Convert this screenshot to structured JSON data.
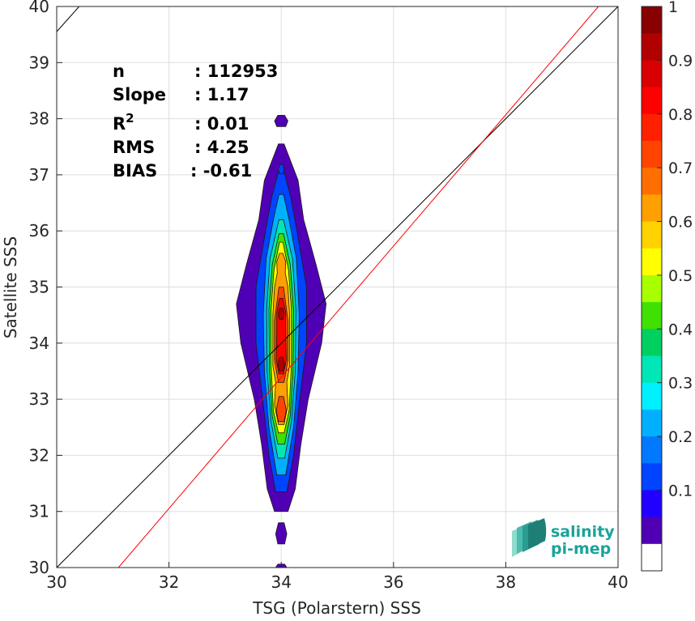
{
  "chart_data": {
    "type": "heatmap",
    "subtype": "filled-contour density scatter",
    "xlabel": "TSG (Polarstern) SSS",
    "ylabel": "Satellite SSS",
    "xlim": [
      30,
      40
    ],
    "ylim": [
      30,
      40
    ],
    "xticks": [
      "30",
      "32",
      "34",
      "36",
      "38",
      "40"
    ],
    "yticks": [
      "30",
      "31",
      "32",
      "33",
      "34",
      "35",
      "36",
      "37",
      "38",
      "39",
      "40"
    ],
    "grid": true,
    "stats": [
      {
        "label": "n",
        "value": ": 112953"
      },
      {
        "label": "Slope",
        "value": ": 1.17"
      },
      {
        "label": "R",
        "sup": "2",
        "value": ": 0.01"
      },
      {
        "label": "RMS",
        "value": ": 4.25"
      },
      {
        "label": "BIAS",
        "value": ": -0.61"
      }
    ],
    "lines": [
      {
        "kind": "identity",
        "color": "#000000",
        "points": [
          [
            30,
            30
          ],
          [
            40,
            40
          ]
        ]
      },
      {
        "kind": "regression",
        "color": "#ff0000",
        "slope": 1.17,
        "points": [
          [
            31.1,
            30
          ],
          [
            39.65,
            40
          ]
        ]
      },
      {
        "kind": "regression-offset",
        "color": "#000000",
        "points": [
          [
            30,
            39.55
          ],
          [
            30.4,
            40
          ]
        ]
      }
    ],
    "density": {
      "center_x": 34.0,
      "levels": [
        {
          "level": 0.05,
          "blobs": [
            {
              "y0": 31.0,
              "y1": 37.55,
              "hw": [
                [
                  31.0,
                  0.12
                ],
                [
                  31.4,
                  0.25
                ],
                [
                  32.2,
                  0.35
                ],
                [
                  33.0,
                  0.48
                ],
                [
                  34.0,
                  0.72
                ],
                [
                  34.7,
                  0.8
                ],
                [
                  35.4,
                  0.62
                ],
                [
                  36.2,
                  0.4
                ],
                [
                  36.9,
                  0.3
                ],
                [
                  37.55,
                  0.05
                ]
              ]
            },
            {
              "y0": 30.42,
              "y1": 30.8,
              "hw": [
                [
                  30.42,
                  0.06
                ],
                [
                  30.6,
                  0.1
                ],
                [
                  30.8,
                  0.05
                ]
              ]
            },
            {
              "y0": 37.86,
              "y1": 38.06,
              "hw": [
                [
                  37.86,
                  0.08
                ],
                [
                  37.96,
                  0.12
                ],
                [
                  38.06,
                  0.06
                ]
              ]
            },
            {
              "y0": 30.0,
              "y1": 30.06,
              "hw": [
                [
                  30.0,
                  0.1
                ],
                [
                  30.06,
                  0.06
                ]
              ]
            }
          ]
        },
        {
          "level": 0.15,
          "blobs": [
            {
              "y0": 31.35,
              "y1": 37.05,
              "hw": [
                [
                  31.35,
                  0.1
                ],
                [
                  32.0,
                  0.22
                ],
                [
                  33.0,
                  0.33
                ],
                [
                  34.0,
                  0.45
                ],
                [
                  35.0,
                  0.45
                ],
                [
                  36.0,
                  0.28
                ],
                [
                  36.6,
                  0.17
                ],
                [
                  37.05,
                  0.05
                ]
              ]
            },
            {
              "y0": 37.02,
              "y1": 37.18,
              "hw": [
                [
                  37.02,
                  0.03
                ],
                [
                  37.1,
                  0.05
                ],
                [
                  37.18,
                  0.03
                ]
              ]
            }
          ]
        },
        {
          "level": 0.25,
          "blobs": [
            {
              "y0": 31.65,
              "y1": 36.65,
              "hw": [
                [
                  31.65,
                  0.08
                ],
                [
                  32.5,
                  0.22
                ],
                [
                  33.5,
                  0.3
                ],
                [
                  34.5,
                  0.32
                ],
                [
                  35.5,
                  0.27
                ],
                [
                  36.2,
                  0.14
                ],
                [
                  36.65,
                  0.04
                ]
              ]
            }
          ]
        },
        {
          "level": 0.35,
          "blobs": [
            {
              "y0": 31.95,
              "y1": 36.2,
              "hw": [
                [
                  31.95,
                  0.06
                ],
                [
                  32.6,
                  0.18
                ],
                [
                  33.5,
                  0.25
                ],
                [
                  34.6,
                  0.26
                ],
                [
                  35.5,
                  0.2
                ],
                [
                  36.2,
                  0.04
                ]
              ]
            }
          ]
        },
        {
          "level": 0.45,
          "blobs": [
            {
              "y0": 32.2,
              "y1": 35.95,
              "hw": [
                [
                  32.2,
                  0.06
                ],
                [
                  32.7,
                  0.16
                ],
                [
                  33.5,
                  0.21
                ],
                [
                  34.6,
                  0.22
                ],
                [
                  35.4,
                  0.16
                ],
                [
                  35.95,
                  0.04
                ]
              ]
            }
          ]
        },
        {
          "level": 0.55,
          "blobs": [
            {
              "y0": 32.4,
              "y1": 35.8,
              "hw": [
                [
                  32.4,
                  0.05
                ],
                [
                  32.8,
                  0.14
                ],
                [
                  33.6,
                  0.18
                ],
                [
                  34.6,
                  0.18
                ],
                [
                  35.3,
                  0.13
                ],
                [
                  35.8,
                  0.03
                ]
              ]
            }
          ]
        },
        {
          "level": 0.65,
          "blobs": [
            {
              "y0": 32.55,
              "y1": 35.6,
              "hw": [
                [
                  32.55,
                  0.05
                ],
                [
                  32.9,
                  0.12
                ],
                [
                  33.3,
                  0.1
                ],
                [
                  33.6,
                  0.15
                ],
                [
                  34.5,
                  0.15
                ],
                [
                  35.0,
                  0.12
                ],
                [
                  35.25,
                  0.07
                ],
                [
                  35.45,
                  0.08
                ],
                [
                  35.6,
                  0.03
                ]
              ]
            }
          ]
        },
        {
          "level": 0.75,
          "blobs": [
            {
              "y0": 32.6,
              "y1": 33.05,
              "hw": [
                [
                  32.6,
                  0.05
                ],
                [
                  32.8,
                  0.09
                ],
                [
                  33.05,
                  0.04
                ]
              ]
            },
            {
              "y0": 33.3,
              "y1": 35.0,
              "hw": [
                [
                  33.3,
                  0.05
                ],
                [
                  33.7,
                  0.12
                ],
                [
                  34.4,
                  0.12
                ],
                [
                  35.0,
                  0.04
                ]
              ]
            }
          ]
        },
        {
          "level": 0.85,
          "blobs": [
            {
              "y0": 33.45,
              "y1": 34.8,
              "hw": [
                [
                  33.45,
                  0.04
                ],
                [
                  33.7,
                  0.09
                ],
                [
                  34.2,
                  0.08
                ],
                [
                  34.55,
                  0.08
                ],
                [
                  34.8,
                  0.03
                ]
              ]
            }
          ]
        },
        {
          "level": 0.95,
          "blobs": [
            {
              "y0": 33.5,
              "y1": 33.75,
              "hw": [
                [
                  33.5,
                  0.03
                ],
                [
                  33.62,
                  0.06
                ],
                [
                  33.75,
                  0.03
                ]
              ]
            },
            {
              "y0": 34.42,
              "y1": 34.62,
              "hw": [
                [
                  34.42,
                  0.03
                ],
                [
                  34.52,
                  0.05
                ],
                [
                  34.62,
                  0.03
                ]
              ]
            }
          ]
        }
      ]
    },
    "colorbar": {
      "min": 0,
      "max": 1,
      "ticks": [
        "0.1",
        "0.2",
        "0.3",
        "0.4",
        "0.5",
        "0.6",
        "0.7",
        "0.8",
        "0.9",
        "1"
      ],
      "colors": [
        "#ffffff",
        "#5000b4",
        "#2200ff",
        "#0044ff",
        "#0078ff",
        "#00b0ff",
        "#00f0ff",
        "#00e6b4",
        "#00d060",
        "#40e000",
        "#a8ff00",
        "#ffff00",
        "#ffd200",
        "#ffa000",
        "#ff6e00",
        "#ff4400",
        "#ff2000",
        "#ff0000",
        "#d80000",
        "#b00000",
        "#880000"
      ]
    }
  },
  "logo": {
    "line1": "salinity",
    "line2": "pi-mep",
    "color": "#1aa39a"
  }
}
